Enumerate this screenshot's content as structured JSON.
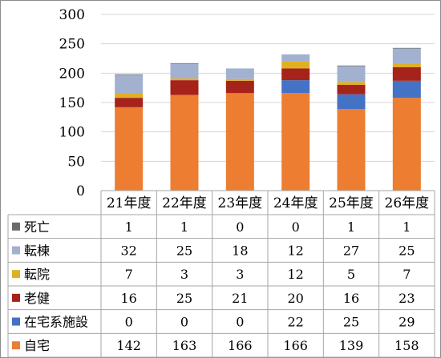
{
  "chart_data": {
    "type": "bar",
    "stacked": true,
    "title": "",
    "xlabel": "",
    "ylabel": "",
    "ylim": [
      0,
      300
    ],
    "yticks": [
      "0",
      "50",
      "100",
      "150",
      "200",
      "250",
      "300"
    ],
    "grid": true,
    "legend": "data-table",
    "categories": [
      "21年度",
      "22年度",
      "23年度",
      "24年度",
      "25年度",
      "26年度"
    ],
    "series": [
      {
        "name": "自宅",
        "color": "#ed7d31",
        "values": [
          142,
          163,
          166,
          166,
          139,
          158
        ]
      },
      {
        "name": "在宅系施設",
        "color": "#4472c4",
        "values": [
          0,
          0,
          0,
          22,
          25,
          29
        ]
      },
      {
        "name": "老健",
        "color": "#a5231b",
        "values": [
          16,
          25,
          21,
          20,
          16,
          23
        ]
      },
      {
        "name": "転院",
        "color": "#e0b024",
        "values": [
          7,
          3,
          3,
          12,
          5,
          7
        ]
      },
      {
        "name": "転棟",
        "color": "#a2b1cf",
        "values": [
          32,
          25,
          18,
          12,
          27,
          25
        ]
      },
      {
        "name": "死亡",
        "color": "#6b6b6b",
        "values": [
          1,
          1,
          0,
          0,
          1,
          1
        ]
      }
    ],
    "table_row_order": [
      "死亡",
      "転棟",
      "転院",
      "老健",
      "在宅系施設",
      "自宅"
    ]
  }
}
